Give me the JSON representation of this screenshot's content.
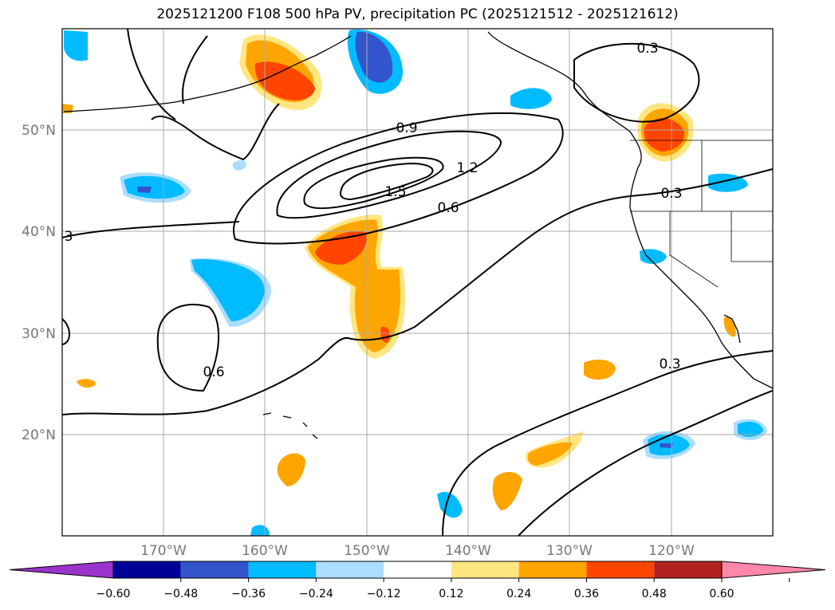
{
  "title": "2025121200 F108 500 hPa PV, precipitation PC (2025121512 - 2025121612)",
  "chart_data": {
    "type": "heatmap",
    "title": "2025121200 F108 500 hPa PV, precipitation PC (2025121512 - 2025121612)",
    "lat_ticks": [
      "20°N",
      "30°N",
      "40°N",
      "50°N"
    ],
    "lon_ticks": [
      "170°W",
      "160°W",
      "150°W",
      "140°W",
      "130°W",
      "120°W"
    ],
    "lat_range": [
      10,
      60
    ],
    "lon_range": [
      -180,
      -110
    ],
    "pv_contour_labels": [
      "0.3",
      "0.6",
      "0.9",
      "1.2",
      "1.5",
      "0.6",
      "0.3",
      "0.3",
      "3"
    ],
    "colorbar": {
      "ticks": [
        "−0.60",
        "−0.48",
        "−0.36",
        "−0.24",
        "−0.12",
        "0.12",
        "0.24",
        "0.36",
        "0.48",
        "0.60"
      ],
      "colors": [
        "#9933cc",
        "#000099",
        "#3355cc",
        "#00bbff",
        "#aaddff",
        "#ffffff",
        "#ffe680",
        "#ffa500",
        "#ff4500",
        "#b22222",
        "#ff88aa"
      ],
      "extend": "both"
    },
    "grid": true
  }
}
